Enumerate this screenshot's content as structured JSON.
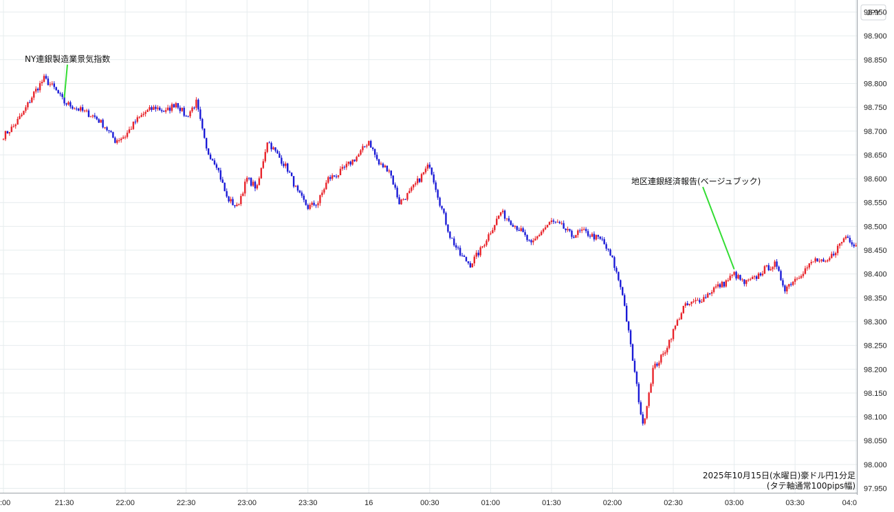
{
  "chart_data": {
    "type": "candlestick",
    "currency_label": "JPY",
    "caption_line1": "2025年10月15日(水曜日)豪ドル円1分足",
    "caption_line2": "(タテ軸通常100pips幅)",
    "ylim": [
      97.95,
      98.95
    ],
    "y_ticks": [
      "98.950",
      "98.900",
      "98.850",
      "98.800",
      "98.750",
      "98.700",
      "98.650",
      "98.600",
      "98.550",
      "98.500",
      "98.450",
      "98.400",
      "98.350",
      "98.300",
      "98.250",
      "98.200",
      "98.150",
      "98.100",
      "98.050",
      "98.000",
      "97.950"
    ],
    "x_ticks": [
      ":00",
      "21:30",
      "22:00",
      "22:30",
      "23:00",
      "23:30",
      "16",
      "00:30",
      "01:00",
      "01:30",
      "02:00",
      "02:30",
      "03:00",
      "03:30",
      "04:0"
    ],
    "colors": {
      "up": "#e8232a",
      "down": "#1a1ad6",
      "annotation_line": "#33dd33",
      "grid": "#e6ecee"
    },
    "annotations": [
      {
        "text": "NY連銀製造業景気指数",
        "time": "21:30",
        "price": 98.77
      },
      {
        "text": "地区連銀経済報告(ベージュブック)",
        "time": "03:00",
        "price": 98.41
      }
    ],
    "price_path": [
      [
        "21:00",
        98.69
      ],
      [
        "21:05",
        98.71
      ],
      [
        "21:10",
        98.74
      ],
      [
        "21:15",
        98.78
      ],
      [
        "21:20",
        98.81
      ],
      [
        "21:25",
        98.79
      ],
      [
        "21:30",
        98.76
      ],
      [
        "21:35",
        98.75
      ],
      [
        "21:40",
        98.74
      ],
      [
        "21:45",
        98.73
      ],
      [
        "21:50",
        98.71
      ],
      [
        "21:55",
        98.68
      ],
      [
        "22:00",
        98.69
      ],
      [
        "22:05",
        98.72
      ],
      [
        "22:10",
        98.74
      ],
      [
        "22:15",
        98.75
      ],
      [
        "22:20",
        98.74
      ],
      [
        "22:25",
        98.76
      ],
      [
        "22:30",
        98.73
      ],
      [
        "22:35",
        98.76
      ],
      [
        "22:40",
        98.66
      ],
      [
        "22:45",
        98.63
      ],
      [
        "22:50",
        98.56
      ],
      [
        "22:55",
        98.54
      ],
      [
        "23:00",
        98.6
      ],
      [
        "23:05",
        98.58
      ],
      [
        "23:10",
        98.68
      ],
      [
        "23:15",
        98.65
      ],
      [
        "23:20",
        98.62
      ],
      [
        "23:25",
        98.57
      ],
      [
        "23:30",
        98.54
      ],
      [
        "23:35",
        98.55
      ],
      [
        "23:40",
        98.6
      ],
      [
        "23:45",
        98.61
      ],
      [
        "23:50",
        98.63
      ],
      [
        "23:55",
        98.65
      ],
      [
        "00:00",
        98.68
      ],
      [
        "00:05",
        98.63
      ],
      [
        "00:10",
        98.62
      ],
      [
        "00:15",
        98.55
      ],
      [
        "00:20",
        98.57
      ],
      [
        "00:25",
        98.6
      ],
      [
        "00:30",
        98.63
      ],
      [
        "00:35",
        98.55
      ],
      [
        "00:40",
        98.48
      ],
      [
        "00:45",
        98.44
      ],
      [
        "00:50",
        98.42
      ],
      [
        "00:55",
        98.45
      ],
      [
        "01:00",
        98.49
      ],
      [
        "01:05",
        98.53
      ],
      [
        "01:10",
        98.51
      ],
      [
        "01:15",
        98.49
      ],
      [
        "01:20",
        98.46
      ],
      [
        "01:25",
        98.49
      ],
      [
        "01:30",
        98.51
      ],
      [
        "01:35",
        98.5
      ],
      [
        "01:40",
        98.48
      ],
      [
        "01:45",
        98.49
      ],
      [
        "01:50",
        98.48
      ],
      [
        "01:55",
        98.47
      ],
      [
        "02:00",
        98.43
      ],
      [
        "02:05",
        98.36
      ],
      [
        "02:10",
        98.22
      ],
      [
        "02:15",
        98.08
      ],
      [
        "02:20",
        98.2
      ],
      [
        "02:25",
        98.23
      ],
      [
        "02:30",
        98.28
      ],
      [
        "02:35",
        98.33
      ],
      [
        "02:40",
        98.34
      ],
      [
        "02:45",
        98.35
      ],
      [
        "02:50",
        98.37
      ],
      [
        "02:55",
        98.38
      ],
      [
        "03:00",
        98.4
      ],
      [
        "03:05",
        98.38
      ],
      [
        "03:10",
        98.39
      ],
      [
        "03:15",
        98.41
      ],
      [
        "03:20",
        98.42
      ],
      [
        "03:25",
        98.37
      ],
      [
        "03:30",
        98.39
      ],
      [
        "03:35",
        98.41
      ],
      [
        "03:40",
        98.43
      ],
      [
        "03:45",
        98.42
      ],
      [
        "03:50",
        98.45
      ],
      [
        "03:55",
        98.48
      ],
      [
        "04:00",
        98.46
      ]
    ]
  }
}
